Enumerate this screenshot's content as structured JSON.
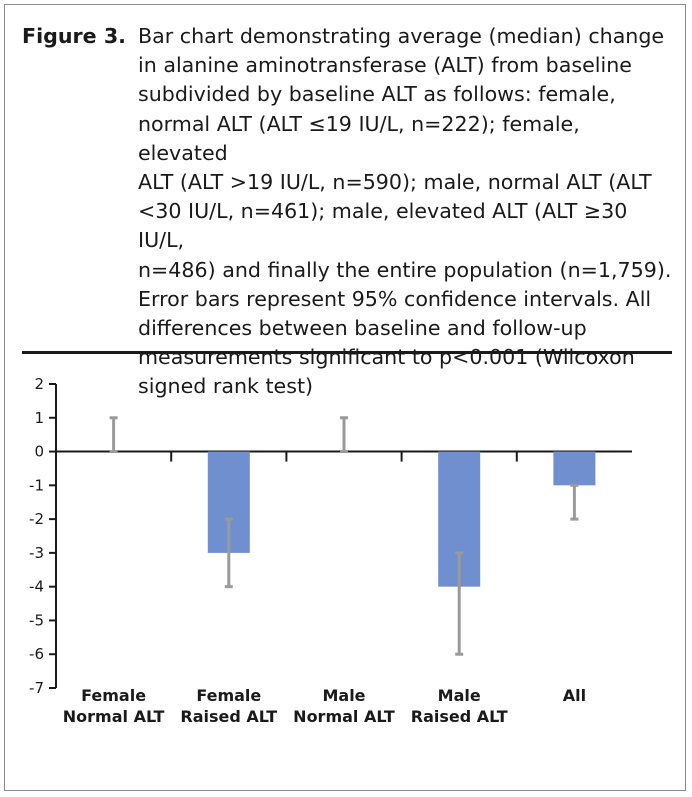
{
  "caption": {
    "label": "Figure 3.",
    "lines": [
      "Bar chart demonstrating average (median) change",
      "in alanine aminotransferase (ALT) from baseline",
      "subdivided by baseline ALT as follows: female,",
      "normal ALT (ALT ≤19 IU/L, n=222); female, elevated",
      "ALT (ALT >19 IU/L, n=590); male, normal ALT (ALT",
      "<30 IU/L, n=461); male, elevated ALT (ALT ≥30 IU/L,",
      "n=486) and finally the entire population (n=1,759).",
      "Error bars represent 95% confidence intervals. All",
      "differences between baseline and follow-up",
      "measurements significant to p<0.001 (Wilcoxon",
      "signed rank test)"
    ]
  },
  "chart_data": {
    "type": "bar",
    "categories": [
      [
        "Female",
        "Normal ALT"
      ],
      [
        "Female",
        "Raised ALT"
      ],
      [
        "Male",
        "Normal ALT"
      ],
      [
        "Male",
        "Raised ALT"
      ],
      [
        "All"
      ]
    ],
    "values": [
      0,
      -3,
      0,
      -4,
      -1
    ],
    "error_low": [
      0,
      -4,
      0,
      -6,
      -2
    ],
    "error_high": [
      1,
      -2,
      1,
      -3,
      -1
    ],
    "ylim": [
      -7,
      2
    ],
    "yticks": [
      2,
      1,
      0,
      -1,
      -2,
      -3,
      -4,
      -5,
      -6,
      -7
    ],
    "title": "",
    "xlabel": "",
    "ylabel": "",
    "bar_color": "#6f8fcf",
    "error_color": "#9a9a9a"
  }
}
